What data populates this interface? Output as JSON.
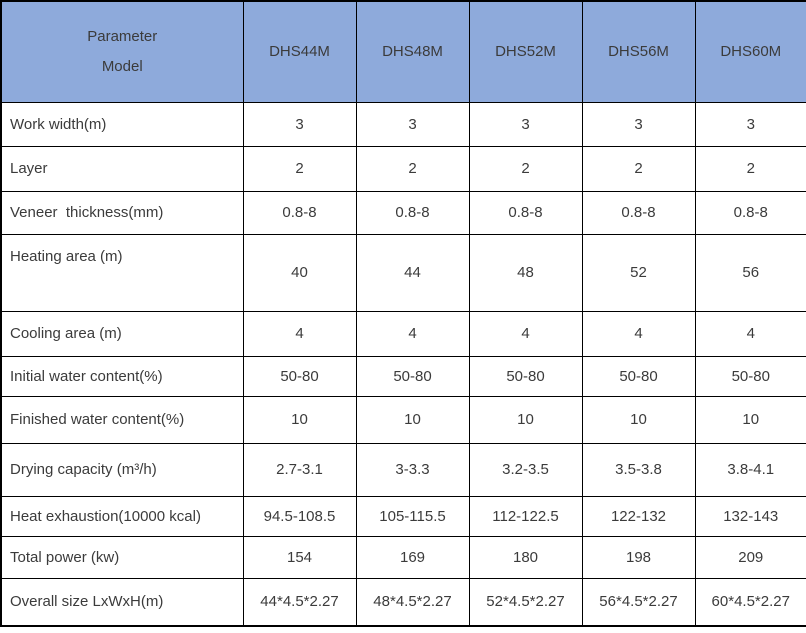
{
  "table": {
    "header": {
      "param_line1": "Parameter",
      "param_line2": "Model",
      "models": [
        "DHS44M",
        "DHS48M",
        "DHS52M",
        "DHS56M",
        "DHS60M"
      ]
    },
    "rows": [
      {
        "label": "Work width(m)",
        "values": [
          "3",
          "3",
          "3",
          "3",
          "3"
        ]
      },
      {
        "label": "Layer",
        "values": [
          "2",
          "2",
          "2",
          "2",
          "2"
        ]
      },
      {
        "label": "Veneer  thickness(mm)",
        "values": [
          "0.8-8",
          "0.8-8",
          "0.8-8",
          "0.8-8",
          "0.8-8"
        ]
      },
      {
        "label": "Heating area (m)",
        "values": [
          "40",
          "44",
          "48",
          "52",
          "56"
        ]
      },
      {
        "label": "Cooling area (m)",
        "values": [
          "4",
          "4",
          "4",
          "4",
          "4"
        ]
      },
      {
        "label": "Initial water content(%)",
        "values": [
          "50-80",
          "50-80",
          "50-80",
          "50-80",
          "50-80"
        ]
      },
      {
        "label": "Finished water content(%)",
        "values": [
          "10",
          "10",
          "10",
          "10",
          "10"
        ]
      },
      {
        "label": "Drying capacity (m³/h)",
        "values": [
          "2.7-3.1",
          "3-3.3",
          "3.2-3.5",
          "3.5-3.8",
          "3.8-4.1"
        ]
      },
      {
        "label": "Heat exhaustion(10000 kcal)",
        "values": [
          "94.5-108.5",
          "105-115.5",
          "112-122.5",
          "122-132",
          "132-143"
        ]
      },
      {
        "label": "Total power (kw)",
        "values": [
          "154",
          "169",
          "180",
          "198",
          "209"
        ]
      },
      {
        "label": "Overall size LxWxH(m)",
        "values": [
          "44*4.5*2.27",
          "48*4.5*2.27",
          "52*4.5*2.27",
          "56*4.5*2.27",
          "60*4.5*2.27"
        ]
      }
    ],
    "colors": {
      "header_bg": "#8eaadb",
      "border": "#000000",
      "text": "#3b3b3b"
    }
  }
}
